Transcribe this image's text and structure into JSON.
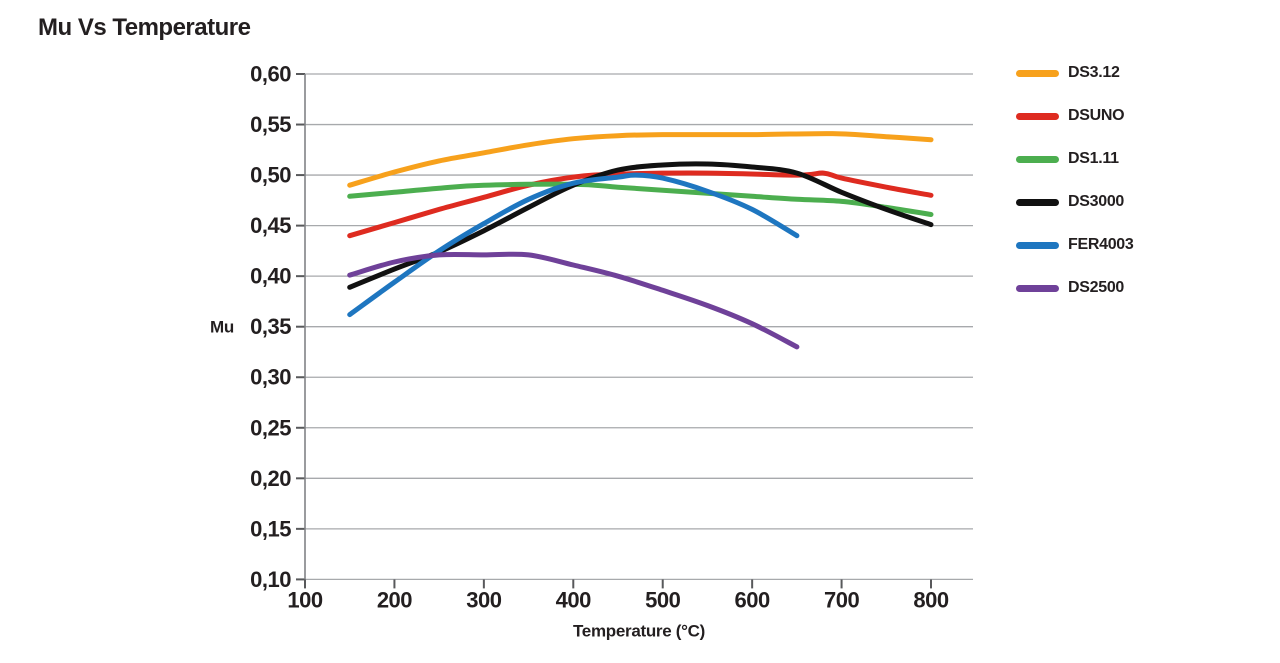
{
  "title": "Mu Vs Temperature",
  "colors": {
    "text": "#231f20",
    "gridline": "#a7a9ac",
    "axis": "#808285",
    "tick": "#58595b"
  },
  "chart_data": {
    "type": "line",
    "title": "Mu Vs Temperature",
    "xlabel": "Temperature (°C)",
    "ylabel": "Mu",
    "xlim": [
      100,
      800
    ],
    "ylim": [
      0.1,
      0.6
    ],
    "grid": "horizontal",
    "legend_position": "right",
    "x_ticks": [
      100,
      200,
      300,
      400,
      500,
      600,
      700,
      800
    ],
    "x_tick_labels": [
      "100",
      "200",
      "300",
      "400",
      "500",
      "600",
      "700",
      "800"
    ],
    "y_ticks": [
      0.6,
      0.55,
      0.5,
      0.45,
      0.4,
      0.35,
      0.3,
      0.25,
      0.2,
      0.15,
      0.1
    ],
    "y_tick_labels": [
      "0,60",
      "0,55",
      "0,50",
      "0,45",
      "0,40",
      "0,35",
      "0,30",
      "0,25",
      "0,20",
      "0,15",
      "0,10"
    ],
    "series": [
      {
        "name": "DS3.12",
        "color": "#F7A11C",
        "points": [
          [
            150,
            0.49
          ],
          [
            200,
            0.503
          ],
          [
            250,
            0.514
          ],
          [
            300,
            0.522
          ],
          [
            350,
            0.53
          ],
          [
            400,
            0.536
          ],
          [
            450,
            0.539
          ],
          [
            500,
            0.54
          ],
          [
            600,
            0.54
          ],
          [
            690,
            0.541
          ],
          [
            750,
            0.538
          ],
          [
            800,
            0.535
          ]
        ]
      },
      {
        "name": "DSUNO",
        "color": "#DE2B20",
        "points": [
          [
            150,
            0.44
          ],
          [
            200,
            0.453
          ],
          [
            250,
            0.466
          ],
          [
            300,
            0.478
          ],
          [
            350,
            0.49
          ],
          [
            400,
            0.498
          ],
          [
            450,
            0.501
          ],
          [
            550,
            0.502
          ],
          [
            650,
            0.5
          ],
          [
            680,
            0.502
          ],
          [
            700,
            0.497
          ],
          [
            750,
            0.488
          ],
          [
            800,
            0.48
          ]
        ]
      },
      {
        "name": "DS1.11",
        "color": "#4CAE4F",
        "points": [
          [
            150,
            0.479
          ],
          [
            200,
            0.483
          ],
          [
            250,
            0.487
          ],
          [
            300,
            0.49
          ],
          [
            400,
            0.491
          ],
          [
            450,
            0.488
          ],
          [
            500,
            0.485
          ],
          [
            550,
            0.482
          ],
          [
            600,
            0.479
          ],
          [
            650,
            0.476
          ],
          [
            700,
            0.474
          ],
          [
            750,
            0.468
          ],
          [
            800,
            0.461
          ]
        ]
      },
      {
        "name": "DS3000",
        "color": "#111111",
        "points": [
          [
            150,
            0.389
          ],
          [
            200,
            0.407
          ],
          [
            250,
            0.424
          ],
          [
            300,
            0.445
          ],
          [
            350,
            0.468
          ],
          [
            400,
            0.49
          ],
          [
            450,
            0.505
          ],
          [
            500,
            0.51
          ],
          [
            550,
            0.511
          ],
          [
            600,
            0.508
          ],
          [
            650,
            0.502
          ],
          [
            700,
            0.483
          ],
          [
            750,
            0.466
          ],
          [
            800,
            0.451
          ]
        ]
      },
      {
        "name": "FER4003",
        "color": "#1E76C0",
        "points": [
          [
            150,
            0.362
          ],
          [
            200,
            0.394
          ],
          [
            250,
            0.425
          ],
          [
            300,
            0.452
          ],
          [
            350,
            0.476
          ],
          [
            400,
            0.492
          ],
          [
            450,
            0.498
          ],
          [
            470,
            0.5
          ],
          [
            500,
            0.497
          ],
          [
            550,
            0.484
          ],
          [
            600,
            0.466
          ],
          [
            650,
            0.44
          ]
        ]
      },
      {
        "name": "DS2500",
        "color": "#6F4199",
        "points": [
          [
            150,
            0.401
          ],
          [
            200,
            0.414
          ],
          [
            250,
            0.421
          ],
          [
            300,
            0.421
          ],
          [
            350,
            0.421
          ],
          [
            400,
            0.411
          ],
          [
            450,
            0.4
          ],
          [
            500,
            0.386
          ],
          [
            550,
            0.371
          ],
          [
            600,
            0.353
          ],
          [
            650,
            0.33
          ]
        ]
      }
    ]
  }
}
